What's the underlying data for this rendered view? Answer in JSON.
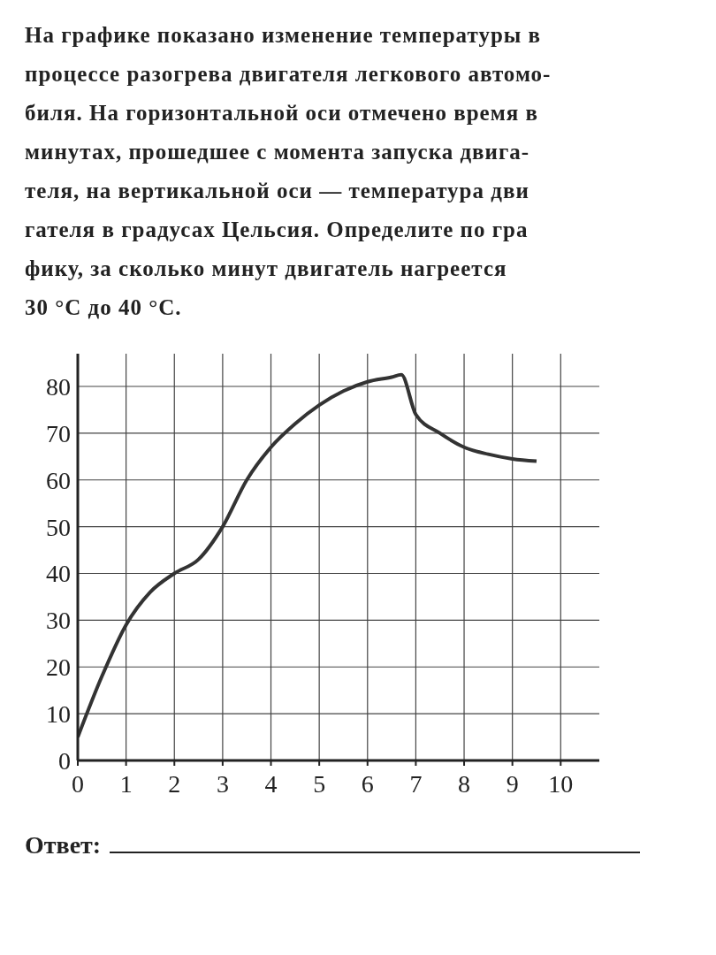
{
  "chart_data": {
    "type": "line",
    "title": "На графике показано изменение температуры в\nпроцессе разогрева двигателя легкового автомо-\nбиля. На горизонтальной оси отмечено время в\nминутах, прошедшее с момента запуска двига-\nтеля, на вертикальной оси — температура дви\nгателя в градусах Цельсия. Определите по гра\nфику, за сколько минут двигатель нагреется\n30 °C до 40 °C.",
    "annotations": [
      "Ответ:"
    ],
    "x": [
      0,
      0.5,
      1,
      1.5,
      2,
      2.5,
      3,
      3.5,
      4,
      4.5,
      5,
      5.5,
      6,
      6.5,
      6.7,
      7,
      7.5,
      8,
      8.5,
      9,
      9.5
    ],
    "series": [
      {
        "color": "#333333",
        "values": [
          5,
          18,
          29,
          36,
          40,
          43,
          50,
          60,
          67,
          72,
          76,
          79,
          81,
          82,
          82.5,
          74,
          70,
          67,
          65.5,
          64.5,
          64
        ]
      }
    ],
    "xlim": [
      0,
      10.8
    ],
    "ylim": [
      0,
      87
    ],
    "xticks": [
      0,
      1,
      2,
      3,
      4,
      5,
      6,
      7,
      8,
      9,
      10
    ],
    "yticks": [
      0,
      10,
      20,
      30,
      40,
      50,
      60,
      70,
      80
    ],
    "grid": true,
    "marker": "none",
    "line_style": "solid"
  }
}
